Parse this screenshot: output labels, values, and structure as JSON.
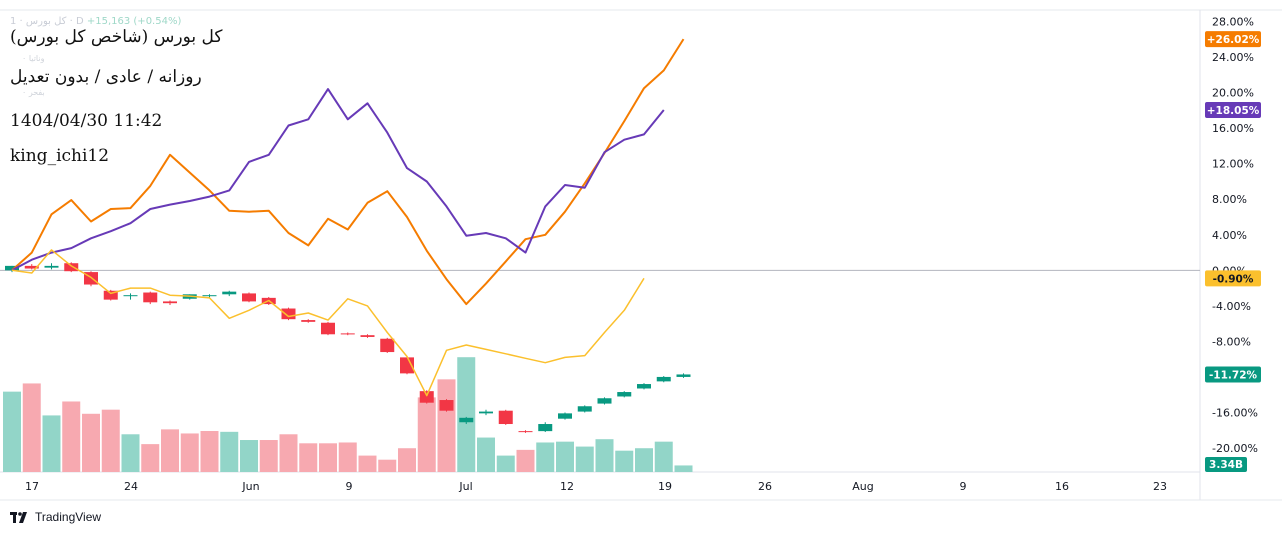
{
  "overlay": {
    "legend_symbol": "کل بورس · 1 · D",
    "legend_change": "+15,163 (+0.54%)",
    "legend_faint_1": "۰ وناتیا",
    "legend_faint_2": "۰ بفحر",
    "title": "کل بورس (شاخص کل بورس)",
    "subtitle": "روزانه / عادی / بدون تعدیل",
    "timestamp": "1404/04/30 11:42",
    "author": "king_ichi12"
  },
  "brand": {
    "name": "TradingView",
    "icon": "tradingview-logo-icon"
  },
  "colors": {
    "orange": "#f57c00",
    "purple": "#673ab7",
    "yellow": "#fbc02d",
    "up": "#089981",
    "down": "#f23645",
    "vol_up": "#92d5c8",
    "vol_down": "#f7a9b0",
    "zero_line": "#b2b5be"
  },
  "chart_data": {
    "type": "line",
    "x_tick_labels": [
      "17",
      "24",
      "Jun",
      "9",
      "Jul",
      "12",
      "19",
      "26",
      "Aug",
      "9",
      "16",
      "23"
    ],
    "y_tick_labels": [
      "28.00%",
      "24.00%",
      "20.00%",
      "16.00%",
      "12.00%",
      "8.00%",
      "4.00%",
      "0.00%",
      "-4.00%",
      "-8.00%",
      "-16.00%",
      "-20.00%"
    ],
    "y_ticks": [
      28,
      24,
      20,
      16,
      12,
      8,
      4,
      0,
      -4,
      -8,
      -16,
      -20
    ],
    "y_range": [
      -22.7,
      29.3
    ],
    "series": [
      {
        "color": "#f57c00",
        "last_label": "+26.02%",
        "last_value": 26.02,
        "values": [
          0.0,
          2.0,
          6.3,
          7.9,
          5.5,
          6.9,
          7.0,
          9.5,
          13.0,
          11.0,
          9.0,
          6.7,
          6.6,
          6.7,
          4.2,
          2.8,
          5.8,
          4.6,
          7.6,
          8.9,
          6.0,
          2.2,
          -1.0,
          -3.8,
          -1.5,
          1.0,
          3.5,
          4.0,
          6.6,
          9.8,
          13.2,
          16.8,
          20.5,
          22.5,
          26.02
        ]
      },
      {
        "color": "#673ab7",
        "last_label": "+18.05%",
        "last_value": 18.05,
        "values": [
          0.0,
          1.2,
          2.0,
          2.5,
          3.6,
          4.4,
          5.3,
          6.9,
          7.4,
          7.8,
          8.3,
          9.0,
          12.2,
          13.0,
          16.3,
          17.0,
          20.4,
          17.0,
          18.8,
          15.5,
          11.5,
          10.0,
          7.2,
          3.9,
          4.2,
          3.6,
          2.0,
          7.2,
          9.6,
          9.3,
          13.3,
          14.7,
          15.3,
          18.05
        ]
      },
      {
        "color": "#fbc02d",
        "last_label": "-0.90%",
        "last_value": -0.9,
        "values": [
          0.0,
          -0.3,
          2.3,
          0.5,
          -0.8,
          -2.6,
          -2.0,
          -2.0,
          -2.8,
          -2.9,
          -3.1,
          -5.4,
          -4.5,
          -3.4,
          -5.2,
          -4.8,
          -5.6,
          -3.2,
          -4.0,
          -7.0,
          -9.7,
          -14.1,
          -9.0,
          -8.4,
          -8.9,
          -9.4,
          -9.9,
          -10.4,
          -9.8,
          -9.6,
          -7.0,
          -4.5,
          -0.9
        ]
      }
    ],
    "candles": {
      "up_color": "#089981",
      "down_color": "#f23645",
      "bars": [
        [
          0.0,
          0.5,
          -0.2,
          0.5
        ],
        [
          0.5,
          0.7,
          0.1,
          0.2
        ],
        [
          0.3,
          0.8,
          0.1,
          0.5
        ],
        [
          0.8,
          0.9,
          -0.2,
          -0.1
        ],
        [
          -0.2,
          -0.1,
          -1.8,
          -1.6
        ],
        [
          -2.3,
          -2.2,
          -3.4,
          -3.3
        ],
        [
          -2.9,
          -2.6,
          -3.3,
          -2.8
        ],
        [
          -2.5,
          -2.4,
          -3.8,
          -3.6
        ],
        [
          -3.5,
          -3.4,
          -3.9,
          -3.7
        ],
        [
          -3.2,
          -2.7,
          -3.3,
          -2.7
        ],
        [
          -2.9,
          -2.7,
          -3.1,
          -2.8
        ],
        [
          -2.7,
          -2.3,
          -2.9,
          -2.4
        ],
        [
          -2.6,
          -2.5,
          -3.6,
          -3.5
        ],
        [
          -3.1,
          -3.0,
          -3.9,
          -3.8
        ],
        [
          -4.3,
          -4.2,
          -5.6,
          -5.5
        ],
        [
          -5.6,
          -5.5,
          -5.9,
          -5.8
        ],
        [
          -5.9,
          -5.8,
          -7.3,
          -7.2
        ],
        [
          -7.1,
          -7.0,
          -7.3,
          -7.2
        ],
        [
          -7.3,
          -7.2,
          -7.6,
          -7.5
        ],
        [
          -7.7,
          -7.6,
          -9.3,
          -9.2
        ],
        [
          -9.8,
          -9.7,
          -11.7,
          -11.6
        ],
        [
          -13.6,
          -13.5,
          -15.0,
          -14.9
        ],
        [
          -14.6,
          -14.5,
          -15.9,
          -15.8
        ],
        [
          -17.1,
          -16.5,
          -17.3,
          -16.6
        ],
        [
          -16.1,
          -15.7,
          -16.3,
          -15.9
        ],
        [
          -15.8,
          -15.7,
          -17.4,
          -17.3
        ],
        [
          -18.1,
          -18.0,
          -18.3,
          -18.2
        ],
        [
          -18.1,
          -17.1,
          -18.2,
          -17.3
        ],
        [
          -16.7,
          -16.0,
          -16.8,
          -16.1
        ],
        [
          -15.9,
          -15.2,
          -16.0,
          -15.3
        ],
        [
          -15.0,
          -14.3,
          -15.1,
          -14.4
        ],
        [
          -14.2,
          -13.6,
          -14.3,
          -13.7
        ],
        [
          -13.3,
          -12.7,
          -13.4,
          -12.8
        ],
        [
          -12.5,
          -11.9,
          -12.6,
          -12.0
        ],
        [
          -12.0,
          -11.6,
          -12.1,
          -11.72
        ]
      ],
      "last_label": "-11.72%",
      "last_value": -11.72
    },
    "volume": {
      "last_label": "3.34B",
      "bars": [
        [
          0.98,
          "up"
        ],
        [
          1.08,
          "down"
        ],
        [
          0.69,
          "up"
        ],
        [
          0.86,
          "down"
        ],
        [
          0.71,
          "down"
        ],
        [
          0.76,
          "down"
        ],
        [
          0.46,
          "up"
        ],
        [
          0.34,
          "down"
        ],
        [
          0.52,
          "down"
        ],
        [
          0.47,
          "down"
        ],
        [
          0.5,
          "down"
        ],
        [
          0.49,
          "up"
        ],
        [
          0.39,
          "up"
        ],
        [
          0.39,
          "down"
        ],
        [
          0.46,
          "down"
        ],
        [
          0.35,
          "down"
        ],
        [
          0.35,
          "down"
        ],
        [
          0.36,
          "down"
        ],
        [
          0.2,
          "down"
        ],
        [
          0.15,
          "down"
        ],
        [
          0.29,
          "down"
        ],
        [
          0.91,
          "down"
        ],
        [
          1.13,
          "down"
        ],
        [
          1.4,
          "up"
        ],
        [
          0.42,
          "up"
        ],
        [
          0.2,
          "up"
        ],
        [
          0.27,
          "down"
        ],
        [
          0.36,
          "up"
        ],
        [
          0.37,
          "up"
        ],
        [
          0.31,
          "up"
        ],
        [
          0.4,
          "up"
        ],
        [
          0.26,
          "up"
        ],
        [
          0.29,
          "up"
        ],
        [
          0.37,
          "up"
        ],
        [
          0.08,
          "up"
        ]
      ]
    }
  }
}
